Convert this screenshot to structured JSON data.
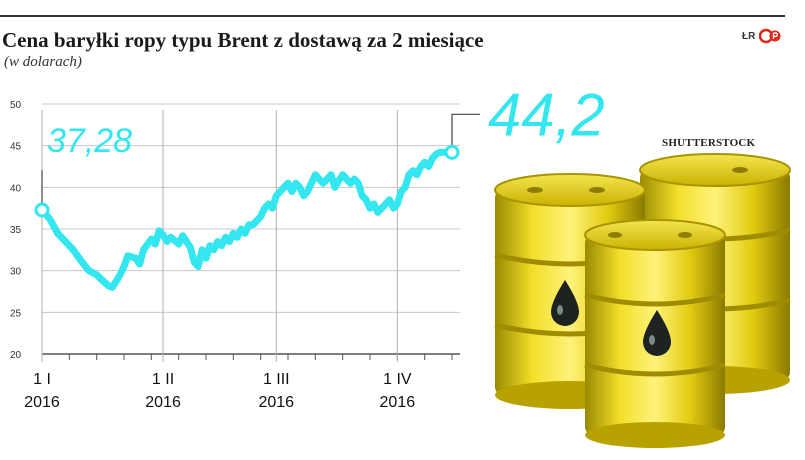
{
  "header": {
    "title": "Cena baryłki ropy typu Brent z dostawą za 2 miesiące",
    "subtitle": "(w dolarach)",
    "logo_text": "ŁR",
    "credit": "SHUTTERSTOCK"
  },
  "colors": {
    "line": "#33e6ef",
    "marker_fill": "#ffffff",
    "grid": "#c8c8c8",
    "axis": "#555555",
    "barrel": "#e8d000",
    "brand_red": "#e1251b"
  },
  "chart_data": {
    "type": "line",
    "title": "Cena baryłki ropy typu Brent z dostawą za 2 miesiące",
    "subtitle": "(w dolarach)",
    "xlabel": "",
    "ylabel": "",
    "ylim": [
      20,
      50
    ],
    "yticks": [
      20,
      25,
      30,
      35,
      40,
      45,
      50
    ],
    "x_tick_labels": [
      {
        "line1": "1 I",
        "line2": "2016",
        "day": 0
      },
      {
        "line1": "1 II",
        "line2": "2016",
        "day": 31
      },
      {
        "line1": "1 III",
        "line2": "2016",
        "day": 60
      },
      {
        "line1": "1 IV",
        "line2": "2016",
        "day": 91
      }
    ],
    "x_range_days": [
      0,
      105
    ],
    "grid": true,
    "series": [
      {
        "x": [
          0,
          2,
          4,
          6,
          8,
          10,
          12,
          14,
          16,
          17,
          18,
          20,
          21,
          22,
          24,
          25,
          26,
          28,
          29,
          30,
          31,
          32,
          33,
          35,
          36,
          37,
          38,
          39,
          40,
          41,
          42,
          43,
          44,
          45,
          46,
          47,
          48,
          49,
          50,
          51,
          52,
          53,
          54,
          55,
          56,
          57,
          58,
          59,
          60,
          61,
          62,
          63,
          64,
          65,
          66,
          67,
          68,
          69,
          70,
          71,
          72,
          73,
          74,
          75,
          76,
          77,
          78,
          79,
          80,
          81,
          82,
          83,
          84,
          85,
          86,
          87,
          88,
          89,
          90,
          91,
          92,
          93,
          94,
          95,
          96,
          97,
          98,
          99,
          100,
          101,
          102,
          103,
          104,
          105
        ],
        "values": [
          37.28,
          36.2,
          34.5,
          33.5,
          32.5,
          31.2,
          30.0,
          29.5,
          28.6,
          28.2,
          28.0,
          29.5,
          30.5,
          31.8,
          31.5,
          30.8,
          32.5,
          33.8,
          33.2,
          34.8,
          34.3,
          33.5,
          34.0,
          33.2,
          34.2,
          33.5,
          32.8,
          31.0,
          30.5,
          32.5,
          31.5,
          33.0,
          32.5,
          33.5,
          33.0,
          34.0,
          33.5,
          34.5,
          34.0,
          35.0,
          34.5,
          35.5,
          35.5,
          36.0,
          36.5,
          37.5,
          38.0,
          37.5,
          39.0,
          39.5,
          40.0,
          40.5,
          39.5,
          40.5,
          40.0,
          39.0,
          39.5,
          40.5,
          41.5,
          41.0,
          40.5,
          41.0,
          41.5,
          40.0,
          40.8,
          41.5,
          41.0,
          40.5,
          41.0,
          40.5,
          39.0,
          38.5,
          37.5,
          38.0,
          37.0,
          37.5,
          38.0,
          38.5,
          37.5,
          38.0,
          39.5,
          40.0,
          41.5,
          42.0,
          41.5,
          42.5,
          43.0,
          42.5,
          43.5,
          44.0,
          44.2,
          44.2,
          44.2,
          44.2
        ]
      }
    ],
    "annotations": [
      {
        "label": "37,28",
        "value": 37.28,
        "day": 0,
        "position": "start"
      },
      {
        "label": "44,2",
        "value": 44.2,
        "day": 105,
        "position": "end"
      }
    ]
  }
}
